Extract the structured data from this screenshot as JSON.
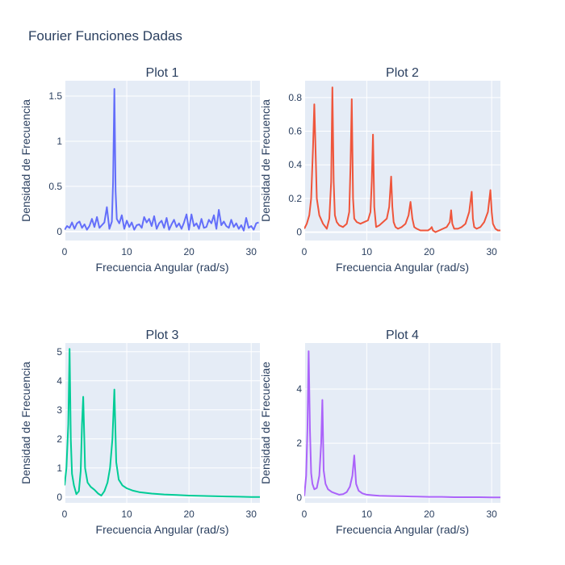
{
  "figure": {
    "title": "Fourier Funciones Dadas"
  },
  "chart_data": [
    {
      "type": "line",
      "title": "Plot 1",
      "xlabel": "Frecuencia Angular (rad/s)",
      "ylabel": "Densidad de Frecuencia",
      "xlim": [
        0,
        31.4
      ],
      "ylim": [
        -0.1,
        1.67
      ],
      "xticks": [
        0,
        10,
        20,
        30
      ],
      "xticklabels": [
        "0",
        "10",
        "20",
        "30"
      ],
      "yticks": [
        0,
        0.5,
        1,
        1.5
      ],
      "yticklabels": [
        "0",
        "0.5",
        "1",
        "1.5"
      ],
      "color": "#636efa",
      "x": [
        0.0,
        0.4,
        0.8,
        1.2,
        1.6,
        2.0,
        2.4,
        2.8,
        3.2,
        3.6,
        4.0,
        4.4,
        4.8,
        5.2,
        5.6,
        6.0,
        6.4,
        6.8,
        7.2,
        7.6,
        7.8,
        8.0,
        8.2,
        8.4,
        8.8,
        9.2,
        9.6,
        10.0,
        10.4,
        10.8,
        11.2,
        11.6,
        12.0,
        12.4,
        12.8,
        13.2,
        13.6,
        14.0,
        14.4,
        14.8,
        15.2,
        15.6,
        16.0,
        16.4,
        16.8,
        17.2,
        17.6,
        18.0,
        18.4,
        18.8,
        19.2,
        19.6,
        20.0,
        20.4,
        20.8,
        21.2,
        21.6,
        22.0,
        22.4,
        22.8,
        23.2,
        23.6,
        24.0,
        24.4,
        24.8,
        25.2,
        25.6,
        26.0,
        26.4,
        26.8,
        27.2,
        27.6,
        28.0,
        28.4,
        28.8,
        29.2,
        29.6,
        30.0,
        30.4,
        30.8,
        31.2
      ],
      "y": [
        0.02,
        0.06,
        0.04,
        0.1,
        0.03,
        0.09,
        0.11,
        0.04,
        0.08,
        0.02,
        0.06,
        0.14,
        0.05,
        0.16,
        0.04,
        0.07,
        0.1,
        0.27,
        0.03,
        0.11,
        0.55,
        1.58,
        0.45,
        0.14,
        0.09,
        0.18,
        0.03,
        0.12,
        0.05,
        0.1,
        0.02,
        0.07,
        0.08,
        0.04,
        0.16,
        0.1,
        0.14,
        0.06,
        0.17,
        0.03,
        0.09,
        0.12,
        0.04,
        0.15,
        0.02,
        0.08,
        0.13,
        0.05,
        0.09,
        0.03,
        0.1,
        0.19,
        0.02,
        0.19,
        0.06,
        0.09,
        0.03,
        0.14,
        0.04,
        0.05,
        0.13,
        0.09,
        0.18,
        0.03,
        0.24,
        0.07,
        0.11,
        0.06,
        0.04,
        0.13,
        0.05,
        0.09,
        0.03,
        0.07,
        0.01,
        0.15,
        0.04,
        0.06,
        0.02,
        0.09,
        0.1
      ]
    },
    {
      "type": "line",
      "title": "Plot 2",
      "xlabel": "Frecuencia Angular (rad/s)",
      "ylabel": "Densidad de Frecuencia",
      "xlim": [
        0,
        31.4
      ],
      "ylim": [
        -0.05,
        0.9
      ],
      "xticks": [
        0,
        10,
        20,
        30
      ],
      "xticklabels": [
        "0",
        "10",
        "20",
        "30"
      ],
      "yticks": [
        0,
        0.2,
        0.4,
        0.6,
        0.8
      ],
      "yticklabels": [
        "0",
        "0.2",
        "0.4",
        "0.6",
        "0.8"
      ],
      "color": "#ef553b",
      "x": [
        0.0,
        0.4,
        0.8,
        1.1,
        1.4,
        1.6,
        1.8,
        2.0,
        2.4,
        3.0,
        3.6,
        4.0,
        4.3,
        4.5,
        4.7,
        4.9,
        5.2,
        5.6,
        6.2,
        6.8,
        7.2,
        7.4,
        7.6,
        7.8,
        8.0,
        8.4,
        9.0,
        9.6,
        10.2,
        10.6,
        10.8,
        11.0,
        11.2,
        11.5,
        12.0,
        12.6,
        13.2,
        13.6,
        13.9,
        14.1,
        14.3,
        14.6,
        15.0,
        15.6,
        16.2,
        16.7,
        17.0,
        17.3,
        17.6,
        18.0,
        18.6,
        19.2,
        19.8,
        20.2,
        20.4,
        20.6,
        21.0,
        21.6,
        22.2,
        22.8,
        23.3,
        23.5,
        23.7,
        24.0,
        24.6,
        25.2,
        25.8,
        26.4,
        26.8,
        27.0,
        27.2,
        27.6,
        28.2,
        28.8,
        29.4,
        29.8,
        30.0,
        30.2,
        30.6,
        31.0,
        31.4
      ],
      "y": [
        0.02,
        0.05,
        0.1,
        0.2,
        0.5,
        0.76,
        0.5,
        0.2,
        0.1,
        0.05,
        0.02,
        0.08,
        0.3,
        0.86,
        0.3,
        0.1,
        0.06,
        0.04,
        0.03,
        0.05,
        0.12,
        0.4,
        0.79,
        0.2,
        0.08,
        0.06,
        0.05,
        0.06,
        0.07,
        0.12,
        0.3,
        0.58,
        0.15,
        0.03,
        0.04,
        0.06,
        0.08,
        0.15,
        0.33,
        0.15,
        0.06,
        0.03,
        0.02,
        0.03,
        0.05,
        0.1,
        0.18,
        0.08,
        0.03,
        0.02,
        0.01,
        0.01,
        0.01,
        0.02,
        0.03,
        0.01,
        0.0,
        0.01,
        0.02,
        0.03,
        0.06,
        0.13,
        0.05,
        0.02,
        0.02,
        0.03,
        0.05,
        0.12,
        0.24,
        0.08,
        0.03,
        0.02,
        0.03,
        0.06,
        0.12,
        0.25,
        0.12,
        0.05,
        0.02,
        0.01,
        0.01
      ]
    },
    {
      "type": "line",
      "title": "Plot 3",
      "xlabel": "Frecuencia Angular (rad/s)",
      "ylabel": "Densidad de Frecuencia",
      "xlim": [
        0,
        31.4
      ],
      "ylim": [
        -0.2,
        5.3
      ],
      "xticks": [
        0,
        10,
        20,
        30
      ],
      "xticklabels": [
        "0",
        "10",
        "20",
        "30"
      ],
      "yticks": [
        0,
        1,
        2,
        3,
        4,
        5
      ],
      "yticklabels": [
        "0",
        "1",
        "2",
        "3",
        "4",
        "5"
      ],
      "color": "#00cc96",
      "x": [
        0.0,
        0.3,
        0.6,
        0.8,
        1.0,
        1.2,
        1.5,
        1.9,
        2.3,
        2.6,
        2.8,
        3.0,
        3.3,
        3.7,
        4.2,
        4.8,
        5.4,
        5.9,
        6.4,
        6.9,
        7.3,
        7.7,
        8.0,
        8.3,
        8.7,
        9.3,
        10.0,
        11.0,
        12.0,
        14.0,
        16.0,
        18.0,
        20.0,
        22.0,
        24.0,
        26.0,
        28.0,
        30.0,
        31.4
      ],
      "y": [
        0.4,
        1.0,
        2.5,
        5.1,
        2.0,
        0.8,
        0.4,
        0.1,
        0.2,
        0.9,
        2.5,
        3.45,
        1.0,
        0.5,
        0.35,
        0.25,
        0.12,
        0.05,
        0.2,
        0.5,
        1.0,
        2.0,
        3.7,
        1.2,
        0.6,
        0.4,
        0.3,
        0.22,
        0.17,
        0.12,
        0.09,
        0.07,
        0.05,
        0.04,
        0.03,
        0.02,
        0.01,
        0.0,
        0.0
      ]
    },
    {
      "type": "line",
      "title": "Plot 4",
      "xlabel": "Frecuencia Angular (rad/s)",
      "ylabel": "Densidad de Frecueciae",
      "xlim": [
        0,
        31.4
      ],
      "ylim": [
        -0.2,
        5.7
      ],
      "xticks": [
        0,
        10,
        20,
        30
      ],
      "xticklabels": [
        "0",
        "10",
        "20",
        "30"
      ],
      "yticks": [
        0,
        2,
        4
      ],
      "yticklabels": [
        "0",
        "2",
        "4"
      ],
      "color": "#ab63fa",
      "x": [
        0.0,
        0.3,
        0.5,
        0.7,
        0.9,
        1.1,
        1.3,
        1.6,
        2.0,
        2.4,
        2.7,
        2.9,
        3.1,
        3.4,
        3.8,
        4.4,
        5.0,
        5.6,
        6.2,
        6.8,
        7.3,
        7.7,
        8.0,
        8.3,
        8.7,
        9.3,
        10.0,
        11.0,
        12.0,
        14.0,
        16.0,
        18.0,
        20.0,
        22.0,
        24.0,
        26.0,
        28.0,
        30.0,
        31.4
      ],
      "y": [
        0.05,
        0.8,
        2.5,
        5.4,
        2.5,
        0.9,
        0.5,
        0.3,
        0.35,
        0.8,
        2.0,
        3.6,
        1.0,
        0.5,
        0.3,
        0.2,
        0.15,
        0.1,
        0.12,
        0.2,
        0.4,
        0.8,
        1.55,
        0.5,
        0.25,
        0.15,
        0.1,
        0.08,
        0.06,
        0.05,
        0.04,
        0.03,
        0.02,
        0.02,
        0.01,
        0.01,
        0.01,
        0.0,
        0.0
      ]
    }
  ]
}
